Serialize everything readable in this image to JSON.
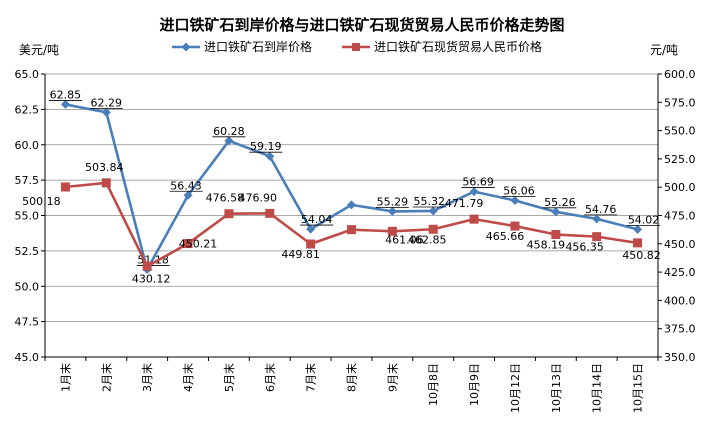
{
  "chart_data": {
    "type": "line",
    "title": "进口铁矿石到岸价格与进口铁矿石现货贸易人民币价格走势图",
    "left_axis": {
      "unit": "美元/吨",
      "ylim": [
        45.0,
        65.0
      ],
      "ticks": [
        "65.0",
        "62.5",
        "60.0",
        "57.5",
        "55.0",
        "52.5",
        "50.0",
        "47.5",
        "45.0"
      ]
    },
    "right_axis": {
      "unit": "元/吨",
      "ylim": [
        350.0,
        600.0
      ],
      "ticks": [
        "600.0",
        "575.0",
        "550.0",
        "525.0",
        "500.0",
        "475.0",
        "450.0",
        "425.0",
        "400.0",
        "375.0",
        "350.0"
      ]
    },
    "categories": [
      "1月末",
      "2月末",
      "3月末",
      "4月末",
      "5月末",
      "6月末",
      "7月末",
      "8月末",
      "9月末",
      "10月8日",
      "10月9日",
      "10月12日",
      "10月13日",
      "10月14日",
      "10月15日"
    ],
    "grid": true,
    "legend_position": "top",
    "series": [
      {
        "name": "进口铁矿石到岸价格",
        "axis": "left",
        "color": "#4a7ebb",
        "marker": "diamond",
        "values": [
          62.85,
          62.29,
          51.18,
          56.43,
          60.28,
          59.19,
          54.04,
          55.75,
          55.29,
          55.32,
          56.69,
          56.06,
          55.26,
          54.76,
          54.02
        ],
        "labels": [
          "62.85",
          "62.29",
          "51.18",
          "56.43",
          "60.28",
          "59.19",
          "54.04",
          "",
          "55.29",
          "55.32",
          "56.69",
          "56.06",
          "55.26",
          "54.76",
          "54.02"
        ]
      },
      {
        "name": "进口铁矿石现货贸易人民币价格",
        "axis": "right",
        "color": "#be4b48",
        "marker": "square",
        "values": [
          500.18,
          503.84,
          430.12,
          450.21,
          476.58,
          476.9,
          449.81,
          462.5,
          461.06,
          462.85,
          471.79,
          465.66,
          458.19,
          456.35,
          450.82
        ],
        "labels": [
          "500.18",
          "503.84",
          "430.12",
          "450.21",
          "476.58",
          "476.90",
          "449.81",
          "",
          "461.06",
          "462.85",
          "471.79",
          "465.66",
          "458.19",
          "456.35",
          "450.82"
        ]
      }
    ]
  }
}
